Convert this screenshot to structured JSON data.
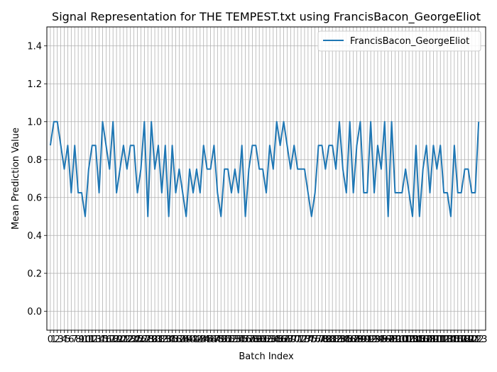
{
  "chart_data": {
    "type": "line",
    "title": "Signal Representation for THE TEMPEST.txt using FrancisBacon_GeorgeEliot",
    "xlabel": "Batch Index",
    "ylabel": "Mean Prediction Value",
    "xlim": [
      -1,
      125
    ],
    "ylim": [
      -0.1,
      1.5
    ],
    "yticks": [
      0.0,
      0.2,
      0.4,
      0.6,
      0.8,
      1.0,
      1.2,
      1.4
    ],
    "grid": true,
    "legend_position": "top-right",
    "series": [
      {
        "name": "FrancisBacon_GeorgeEliot",
        "color": "#1f77b4",
        "x": [
          0,
          1,
          2,
          3,
          4,
          5,
          6,
          7,
          8,
          9,
          10,
          11,
          12,
          13,
          14,
          15,
          16,
          17,
          18,
          19,
          20,
          21,
          22,
          23,
          24,
          25,
          26,
          27,
          28,
          29,
          30,
          31,
          32,
          33,
          34,
          35,
          36,
          37,
          38,
          39,
          40,
          41,
          42,
          43,
          44,
          45,
          46,
          47,
          48,
          49,
          50,
          51,
          52,
          53,
          54,
          55,
          56,
          57,
          58,
          59,
          60,
          61,
          62,
          63,
          64,
          65,
          66,
          67,
          68,
          69,
          70,
          71,
          72,
          73,
          74,
          75,
          76,
          77,
          78,
          79,
          80,
          81,
          82,
          83,
          84,
          85,
          86,
          87,
          88,
          89,
          90,
          91,
          92,
          93,
          94,
          95,
          96,
          97,
          98,
          99,
          100,
          101,
          102,
          103,
          104,
          105,
          106,
          107,
          108,
          109,
          110,
          111,
          112,
          113,
          114,
          115,
          116,
          117,
          118,
          119,
          120,
          121,
          122,
          123
        ],
        "values": [
          0.875,
          1.0,
          1.0,
          0.875,
          0.75,
          0.875,
          0.625,
          0.875,
          0.625,
          0.625,
          0.5,
          0.75,
          0.875,
          0.875,
          0.625,
          1.0,
          0.875,
          0.75,
          1.0,
          0.625,
          0.75,
          0.875,
          0.75,
          0.875,
          0.875,
          0.625,
          0.75,
          1.0,
          0.5,
          1.0,
          0.75,
          0.875,
          0.625,
          0.875,
          0.5,
          0.875,
          0.625,
          0.75,
          0.625,
          0.5,
          0.75,
          0.625,
          0.75,
          0.625,
          0.875,
          0.75,
          0.75,
          0.875,
          0.625,
          0.5,
          0.75,
          0.75,
          0.625,
          0.75,
          0.625,
          0.875,
          0.5,
          0.75,
          0.875,
          0.875,
          0.75,
          0.75,
          0.625,
          0.875,
          0.75,
          1.0,
          0.875,
          1.0,
          0.875,
          0.75,
          0.875,
          0.75,
          0.75,
          0.75,
          0.625,
          0.5,
          0.625,
          0.875,
          0.875,
          0.75,
          0.875,
          0.875,
          0.75,
          1.0,
          0.75,
          0.625,
          1.0,
          0.625,
          0.875,
          1.0,
          0.625,
          0.625,
          1.0,
          0.625,
          0.875,
          0.75,
          1.0,
          0.5,
          1.0,
          0.625,
          0.625,
          0.625,
          0.75,
          0.625,
          0.5,
          0.875,
          0.5,
          0.75,
          0.875,
          0.625,
          0.875,
          0.75,
          0.875,
          0.625,
          0.625,
          0.5,
          0.875,
          0.625,
          0.625,
          0.75,
          0.75,
          0.625,
          0.625,
          1.0
        ]
      }
    ]
  }
}
